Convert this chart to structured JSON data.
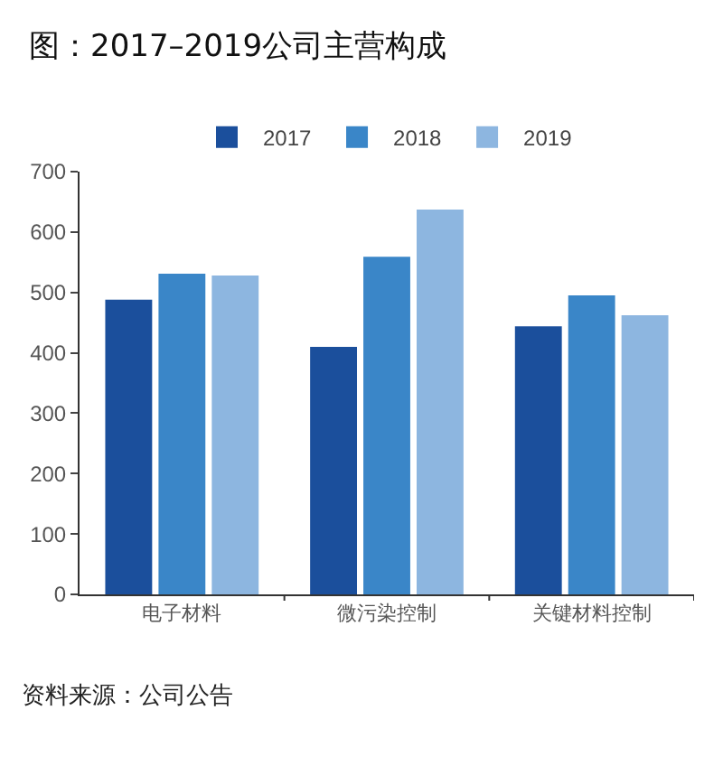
{
  "chart_data": {
    "type": "bar",
    "title": "图：2017–2019公司主营构成",
    "categories": [
      "电子材料",
      "微污染控制",
      "关键材料控制"
    ],
    "series": [
      {
        "name": "2017",
        "color": "#1b4f9c",
        "values": [
          488,
          410,
          444
        ]
      },
      {
        "name": "2018",
        "color": "#3a86c8",
        "values": [
          531,
          559,
          495
        ]
      },
      {
        "name": "2019",
        "color": "#8db6e0",
        "values": [
          528,
          637,
          462
        ]
      }
    ],
    "ylim": [
      0,
      700
    ],
    "yticks": [
      0,
      100,
      200,
      300,
      400,
      500,
      600,
      700
    ],
    "grid": false,
    "legend": "top",
    "annotations": [
      "资料来源：公司公告"
    ]
  }
}
